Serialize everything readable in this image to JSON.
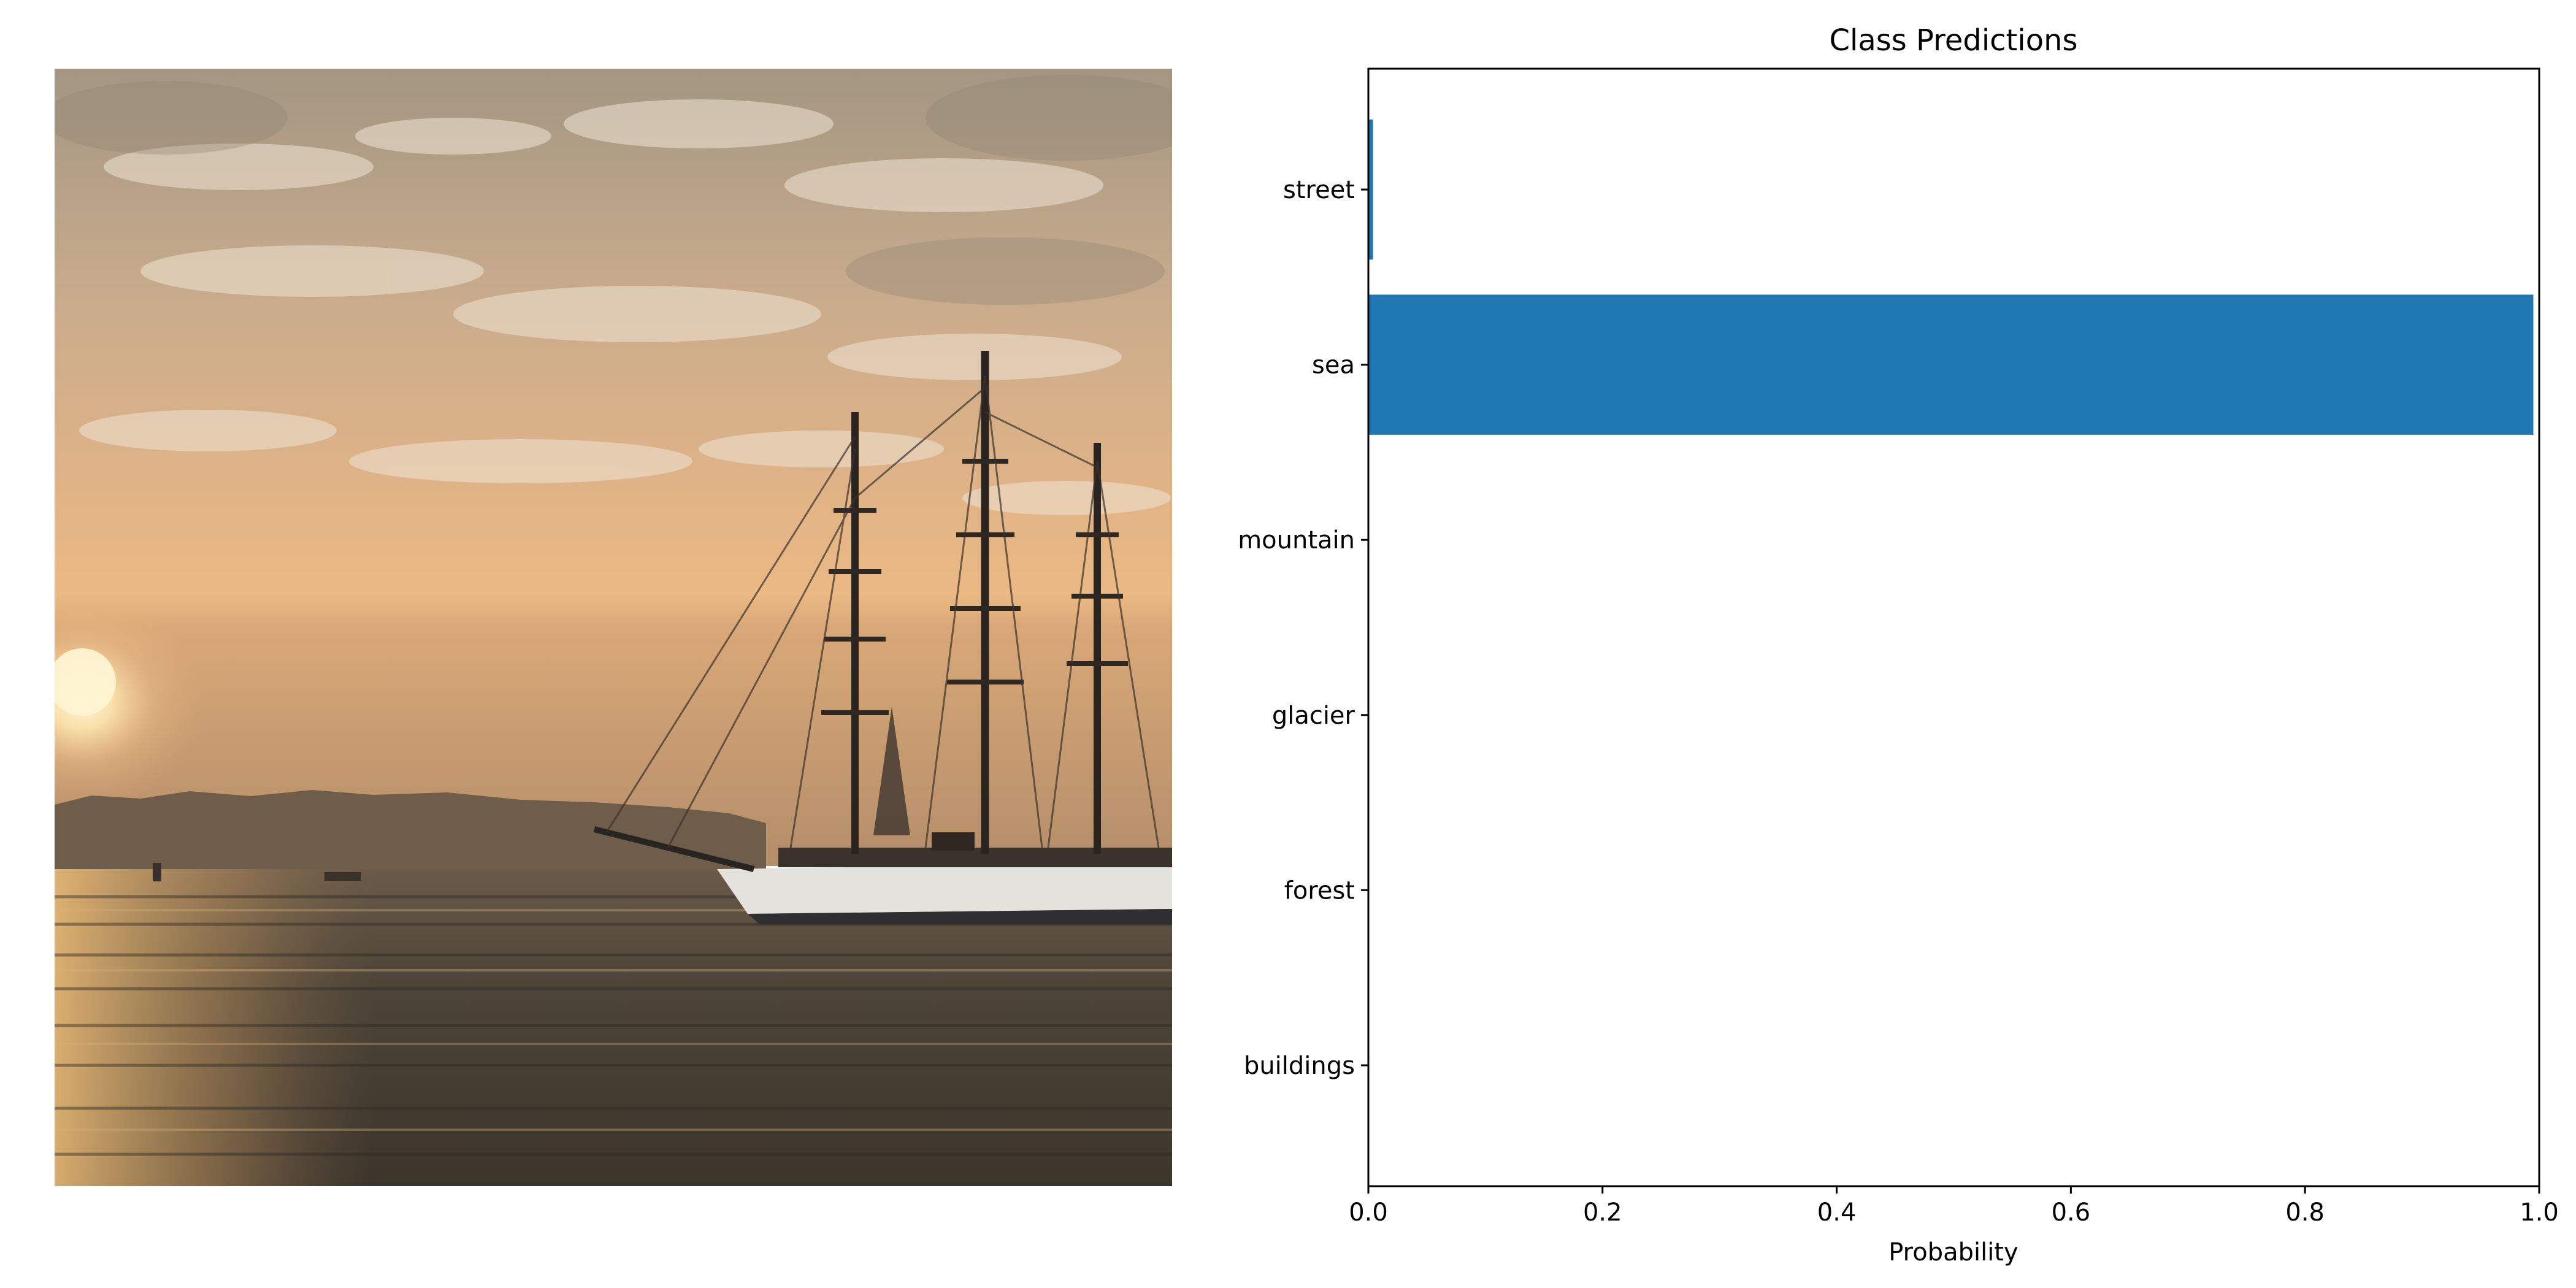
{
  "figure": {
    "photo": {
      "subject": "sailing-ship-at-sunset",
      "colors": {
        "sky_top": "#a89c8c",
        "sky_mid": "#d8b48e",
        "sun": "#fff0c8",
        "horizon": "#e8b47a",
        "land": "#6e5c4a",
        "water": "#4a4236",
        "ship_hull": "#dcdcdc",
        "ship_dark": "#2a2420"
      }
    }
  },
  "chart_data": {
    "type": "bar",
    "orientation": "horizontal",
    "title": "Class Predictions",
    "xlabel": "Probability",
    "ylabel": "",
    "xlim": [
      0.0,
      1.0
    ],
    "xticks": [
      "0.0",
      "0.2",
      "0.4",
      "0.6",
      "0.8",
      "1.0"
    ],
    "categories": [
      "buildings",
      "forest",
      "glacier",
      "mountain",
      "sea",
      "street"
    ],
    "values": [
      0.0,
      0.0,
      0.0,
      0.0,
      0.995,
      0.004
    ],
    "bar_color": "#1f77b4",
    "grid": false,
    "legend": "none"
  }
}
